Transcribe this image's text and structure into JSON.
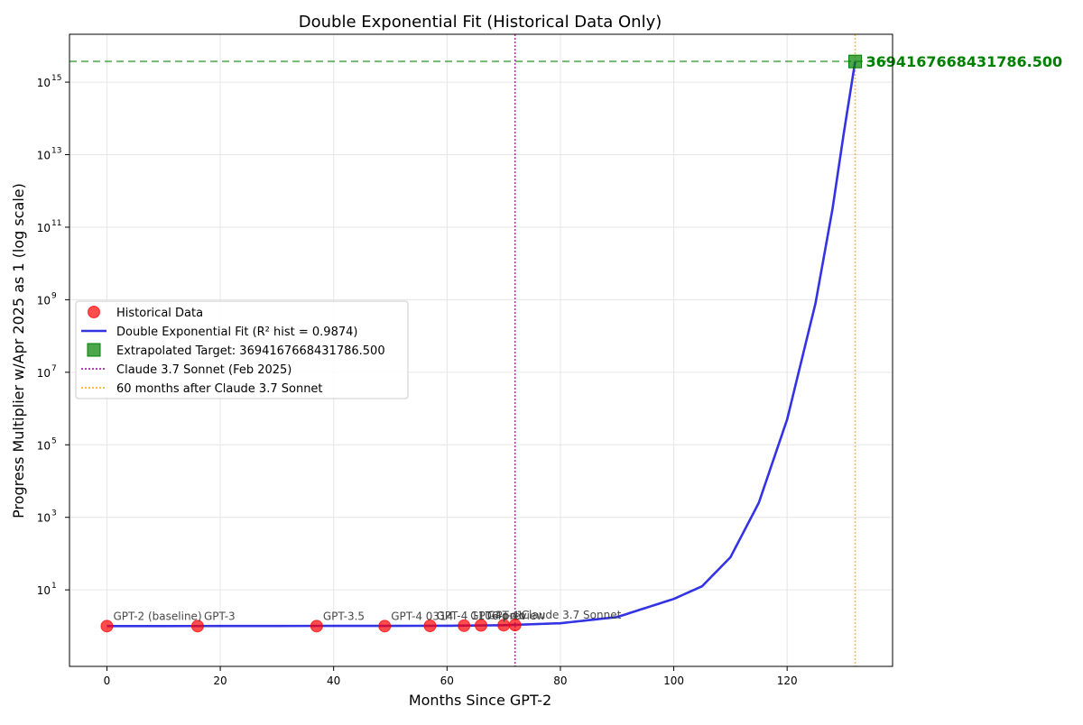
{
  "chart_data": {
    "type": "line",
    "title": "Double Exponential Fit (Historical Data Only)",
    "xlabel": "Months Since GPT-2",
    "ylabel": "Progress Multiplier w/Apr 2025 as 1 (log scale)",
    "xlim": [
      -6.6,
      138.6
    ],
    "ylim_log10": [
      -1.11,
      16.32
    ],
    "log_scale_y": true,
    "grid": true,
    "x_ticks": [
      0,
      20,
      40,
      60,
      80,
      100,
      120
    ],
    "y_ticks": [
      {
        "exp": 1,
        "label": "10"
      },
      {
        "exp": 3,
        "label": "10"
      },
      {
        "exp": 5,
        "label": "10"
      },
      {
        "exp": 7,
        "label": "10"
      },
      {
        "exp": 9,
        "label": "10"
      },
      {
        "exp": 11,
        "label": "10"
      },
      {
        "exp": 13,
        "label": "10"
      },
      {
        "exp": 15,
        "label": "10"
      }
    ],
    "historical": {
      "name": "Historical Data",
      "color": "#ff0000",
      "points": [
        {
          "x": 0,
          "y": 1.0,
          "label": "GPT-2 (baseline)"
        },
        {
          "x": 16,
          "y": 1.0,
          "label": "GPT-3"
        },
        {
          "x": 37,
          "y": 1.0,
          "label": "GPT-3.5"
        },
        {
          "x": 49,
          "y": 1.0,
          "label": "GPT-4 0314"
        },
        {
          "x": 57,
          "y": 1.02,
          "label": "GPT-4 1106-preview"
        },
        {
          "x": 63,
          "y": 1.03,
          "label": "GPT-4o"
        },
        {
          "x": 66,
          "y": 1.05,
          "label": "GPT-4o"
        },
        {
          "x": 70,
          "y": 1.06,
          "label": "o1"
        },
        {
          "x": 72,
          "y": 1.07,
          "label": "Claude 3.7 Sonnet"
        }
      ]
    },
    "fit": {
      "name": "Double Exponential Fit (R² hist = 0.9874)",
      "color": "#0000dd",
      "x_range": [
        0,
        132
      ],
      "curve": [
        {
          "x": 0,
          "log10y": 0
        },
        {
          "x": 60,
          "log10y": 0.01
        },
        {
          "x": 70,
          "log10y": 0.025
        },
        {
          "x": 80,
          "log10y": 0.08
        },
        {
          "x": 90,
          "log10y": 0.25
        },
        {
          "x": 100,
          "log10y": 0.75
        },
        {
          "x": 105,
          "log10y": 1.1
        },
        {
          "x": 110,
          "log10y": 1.9
        },
        {
          "x": 115,
          "log10y": 3.4
        },
        {
          "x": 120,
          "log10y": 5.7
        },
        {
          "x": 125,
          "log10y": 8.9
        },
        {
          "x": 128,
          "log10y": 11.5
        },
        {
          "x": 130,
          "log10y": 13.6
        },
        {
          "x": 132,
          "log10y": 15.57
        }
      ]
    },
    "target": {
      "name": "Extrapolated Target: 3694167668431786.500",
      "value_label": "3694167668431786.500",
      "x": 132,
      "log10y": 15.57,
      "color": "#008000"
    },
    "vlines": [
      {
        "x": 72,
        "name": "Claude 3.7 Sonnet (Feb 2025)",
        "color": "#990099"
      },
      {
        "x": 132,
        "name": "60 months after Claude 3.7 Sonnet",
        "color": "#ffa500"
      }
    ],
    "legend_position": "center-left"
  }
}
